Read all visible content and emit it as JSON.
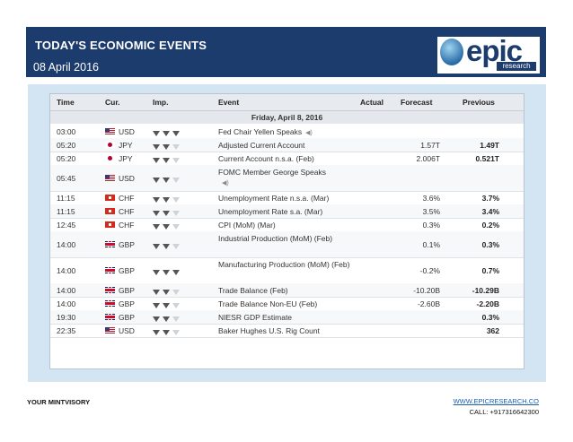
{
  "header": {
    "title": "TODAY'S ECONOMIC EVENTS",
    "date": "08 April 2016"
  },
  "logo": {
    "word": "epic",
    "sub": "research"
  },
  "table": {
    "columns": [
      "Time",
      "Cur.",
      "Imp.",
      "Event",
      "Actual",
      "Forecast",
      "Previous"
    ],
    "day": "Friday, April 8, 2016",
    "rows": [
      {
        "time": "03:00",
        "flag": "us",
        "cur": "USD",
        "imp": 3,
        "event": "Fed Chair Yellen Speaks",
        "speech": true,
        "forecast": "",
        "previous": ""
      },
      {
        "time": "05:20",
        "flag": "jp",
        "cur": "JPY",
        "imp": 2,
        "event": "Adjusted Current Account",
        "speech": false,
        "forecast": "1.57T",
        "previous": "1.49T"
      },
      {
        "time": "05:20",
        "flag": "jp",
        "cur": "JPY",
        "imp": 2,
        "event": "Current Account n.s.a. (Feb)",
        "speech": false,
        "forecast": "2.006T",
        "previous": "0.521T"
      },
      {
        "time": "05:45",
        "flag": "us",
        "cur": "USD",
        "imp": 2,
        "event": "FOMC Member George Speaks",
        "speech": true,
        "forecast": "",
        "previous": ""
      },
      {
        "time": "11:15",
        "flag": "ch",
        "cur": "CHF",
        "imp": 2,
        "event": "Unemployment Rate n.s.a. (Mar)",
        "speech": false,
        "forecast": "3.6%",
        "previous": "3.7%"
      },
      {
        "time": "11:15",
        "flag": "ch",
        "cur": "CHF",
        "imp": 2,
        "event": "Unemployment Rate s.a. (Mar)",
        "speech": false,
        "forecast": "3.5%",
        "previous": "3.4%"
      },
      {
        "time": "12:45",
        "flag": "ch",
        "cur": "CHF",
        "imp": 2,
        "event": "CPI (MoM) (Mar)",
        "speech": false,
        "forecast": "0.3%",
        "previous": "0.2%"
      },
      {
        "time": "14:00",
        "flag": "gb",
        "cur": "GBP",
        "imp": 2,
        "event": "Industrial Production (MoM) (Feb)",
        "speech": false,
        "forecast": "0.1%",
        "previous": "0.3%"
      },
      {
        "time": "14:00",
        "flag": "gb",
        "cur": "GBP",
        "imp": 3,
        "event": "Manufacturing Production (MoM) (Feb)",
        "speech": false,
        "forecast": "-0.2%",
        "previous": "0.7%"
      },
      {
        "time": "14:00",
        "flag": "gb",
        "cur": "GBP",
        "imp": 2,
        "event": "Trade Balance (Feb)",
        "speech": false,
        "forecast": "-10.20B",
        "previous": "-10.29B"
      },
      {
        "time": "14:00",
        "flag": "gb",
        "cur": "GBP",
        "imp": 2,
        "event": "Trade Balance Non-EU (Feb)",
        "speech": false,
        "forecast": "-2.60B",
        "previous": "-2.20B"
      },
      {
        "time": "19:30",
        "flag": "gb",
        "cur": "GBP",
        "imp": 2,
        "event": "NIESR GDP Estimate",
        "speech": false,
        "forecast": "",
        "previous": "0.3%"
      },
      {
        "time": "22:35",
        "flag": "us",
        "cur": "USD",
        "imp": 2,
        "event": "Baker Hughes U.S. Rig Count",
        "speech": false,
        "forecast": "",
        "previous": "362"
      }
    ]
  },
  "footer": {
    "left": "YOUR MINTVISORY",
    "link": "WWW.EPICRESEARCH.CO",
    "call": "CALL: +917316642300"
  }
}
